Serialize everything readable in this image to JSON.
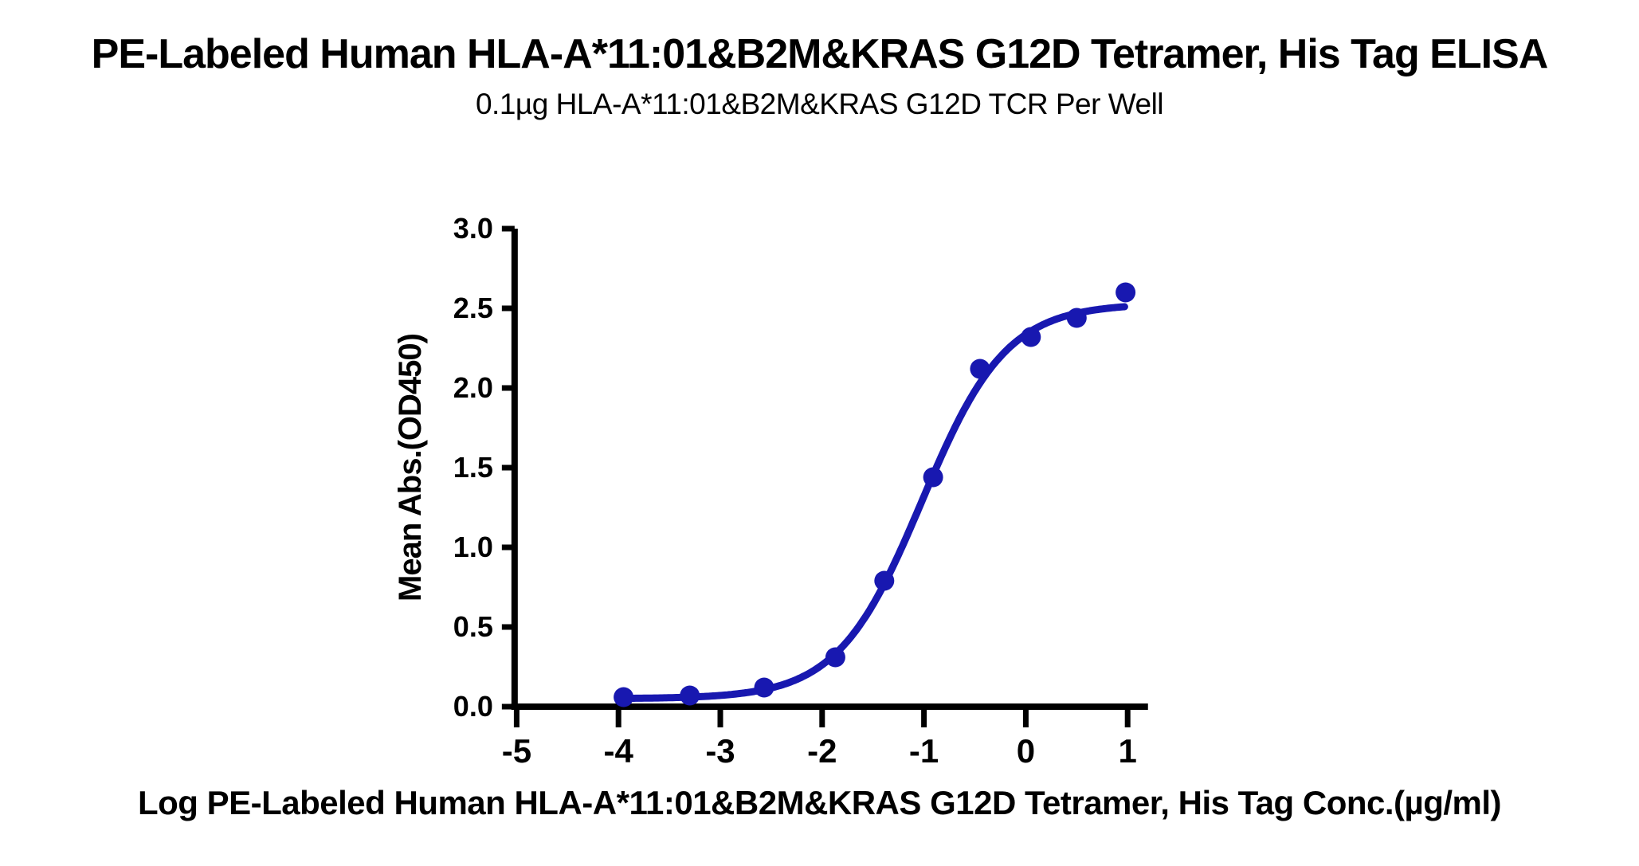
{
  "chart_data": {
    "type": "scatter",
    "title": "PE-Labeled Human HLA-A*11:01&B2M&KRAS G12D Tetramer, His Tag ELISA",
    "subtitle": "0.1µg HLA-A*11:01&B2M&KRAS G12D TCR Per Well",
    "xlabel": "Log PE-Labeled Human HLA-A*11:01&B2M&KRAS G12D Tetramer, His Tag Conc.(µg/ml)",
    "ylabel": "Mean Abs.(OD450)",
    "xlim": [
      -5.02,
      1.2
    ],
    "ylim": [
      0,
      3.0
    ],
    "x_ticks": [
      -5,
      -4,
      -3,
      -2,
      -1,
      0,
      1
    ],
    "x_tick_labels": [
      "-5",
      "-4",
      "-3",
      "-2",
      "-1",
      "0",
      "1"
    ],
    "y_ticks": [
      0.0,
      0.5,
      1.0,
      1.5,
      2.0,
      2.5,
      3.0
    ],
    "y_tick_labels": [
      "0.0",
      "0.5",
      "1.0",
      "1.5",
      "2.0",
      "2.5",
      "3.0"
    ],
    "grid": false,
    "legend": null,
    "points": [
      [
        -3.95,
        0.06
      ],
      [
        -3.3,
        0.07
      ],
      [
        -2.57,
        0.12
      ],
      [
        -1.87,
        0.31
      ],
      [
        -1.39,
        0.79
      ],
      [
        -0.91,
        1.44
      ],
      [
        -0.45,
        2.12
      ],
      [
        0.05,
        2.32
      ],
      [
        0.5,
        2.44
      ],
      [
        0.98,
        2.6
      ]
    ],
    "fit_curve": {
      "model": "4PL-sigmoid",
      "bottom": 0.05,
      "top": 2.53,
      "log_ec50": -1.02,
      "hill_slope": 1.05,
      "x_start": -3.95,
      "x_end": 0.97
    },
    "colors": {
      "series": "#1818b0",
      "axis": "#000000",
      "background": "#ffffff"
    }
  }
}
